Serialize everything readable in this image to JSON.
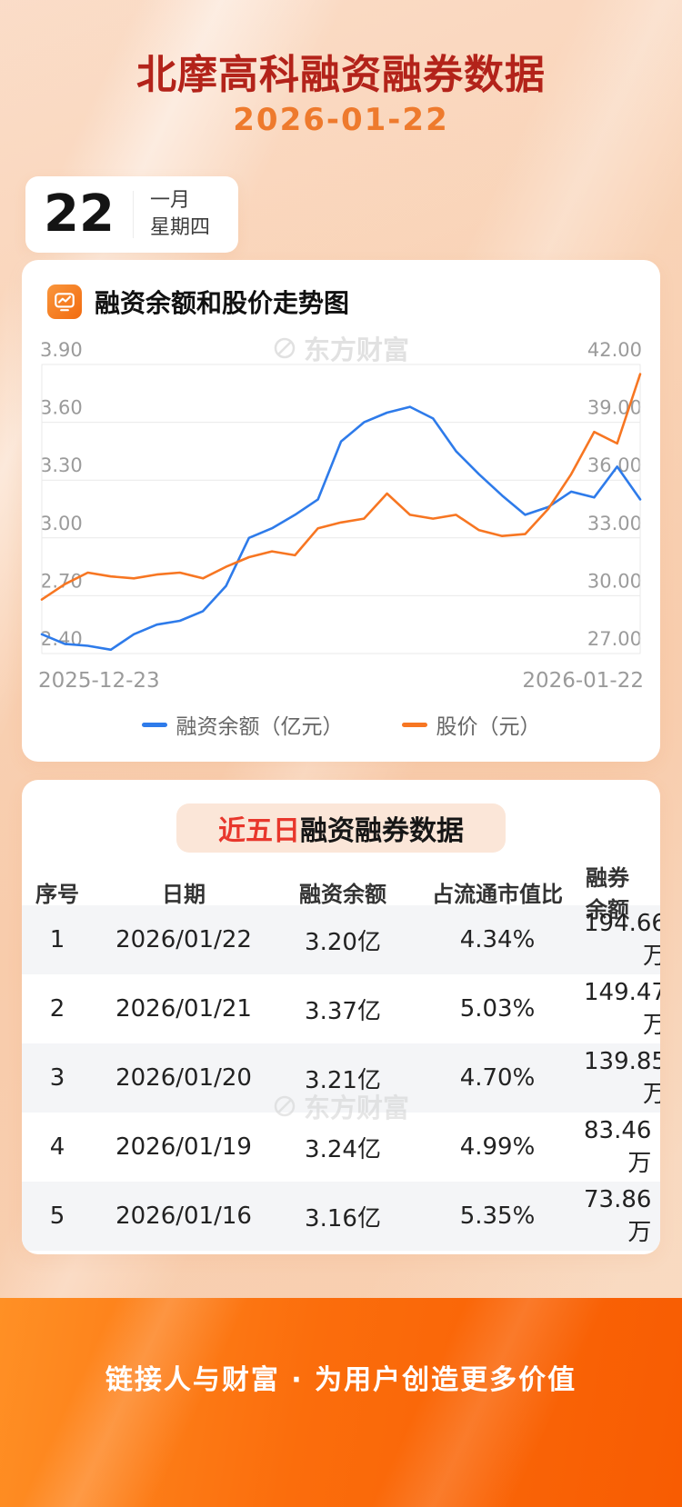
{
  "page": {
    "title": "北摩高科融资融券数据",
    "date": "2026-01-22"
  },
  "date_card": {
    "day": "22",
    "month": "一月",
    "weekday": "星期四"
  },
  "chart_section": {
    "title": "融资余额和股价走势图",
    "icon": "line-chart-icon",
    "watermark": "东方财富",
    "x_start_label": "2025-12-23",
    "x_end_label": "2026-01-22",
    "legend": [
      {
        "label": "融资余额（亿元）",
        "color": "#2e7bea"
      },
      {
        "label": "股价（元）",
        "color": "#f77622"
      }
    ]
  },
  "chart_data": {
    "type": "line",
    "title": "融资余额和股价走势图",
    "x_range": [
      "2025-12-23",
      "2026-01-22"
    ],
    "grid": true,
    "legend_position": "bottom",
    "left_axis": {
      "min": 2.4,
      "max": 3.9,
      "ticks": [
        "3.90",
        "3.60",
        "3.30",
        "3.00",
        "2.70",
        "2.40"
      ]
    },
    "right_axis": {
      "min": 27.0,
      "max": 42.0,
      "ticks": [
        "42.00",
        "39.00",
        "36.00",
        "33.00",
        "30.00",
        "27.00"
      ]
    },
    "series": [
      {
        "name": "融资余额（亿元）",
        "axis": "left",
        "color": "#2e7bea",
        "values": [
          2.5,
          2.45,
          2.44,
          2.42,
          2.5,
          2.55,
          2.57,
          2.62,
          2.75,
          3.0,
          3.05,
          3.12,
          3.2,
          3.5,
          3.6,
          3.65,
          3.68,
          3.62,
          3.45,
          3.33,
          3.22,
          3.12,
          3.16,
          3.24,
          3.21,
          3.37,
          3.2
        ]
      },
      {
        "name": "股价（元）",
        "axis": "right",
        "color": "#f77622",
        "values": [
          29.8,
          30.6,
          31.2,
          31.0,
          30.9,
          31.1,
          31.2,
          30.9,
          31.5,
          32.0,
          32.3,
          32.1,
          33.5,
          33.8,
          34.0,
          35.3,
          34.2,
          34.0,
          34.2,
          33.4,
          33.1,
          33.2,
          34.5,
          36.3,
          38.5,
          37.9,
          41.5
        ]
      }
    ]
  },
  "table_section": {
    "title_highlight": "近五日",
    "title_rest": "融资融券数据",
    "watermark": "东方财富",
    "columns": [
      "序号",
      "日期",
      "融资余额",
      "占流通市值比",
      "融券余额"
    ],
    "rows": [
      [
        "1",
        "2026/01/22",
        "3.20亿",
        "4.34%",
        "194.66万"
      ],
      [
        "2",
        "2026/01/21",
        "3.37亿",
        "5.03%",
        "149.47万"
      ],
      [
        "3",
        "2026/01/20",
        "3.21亿",
        "4.70%",
        "139.85万"
      ],
      [
        "4",
        "2026/01/19",
        "3.24亿",
        "4.99%",
        "83.46万"
      ],
      [
        "5",
        "2026/01/16",
        "3.16亿",
        "5.35%",
        "73.86万"
      ]
    ]
  },
  "footer": {
    "slogan": "链接人与财富 · 为用户创造更多价值"
  },
  "colors": {
    "title_red": "#b3231a",
    "accent_orange": "#ee7a2d",
    "line_blue": "#2e7bea",
    "line_orange": "#f77622",
    "highlight_red": "#e8372c",
    "footer_orange_start": "#ff9025",
    "footer_orange_end": "#f85c02",
    "pill_bg": "#fbe6d8",
    "row_stripe": "#f4f5f7"
  }
}
